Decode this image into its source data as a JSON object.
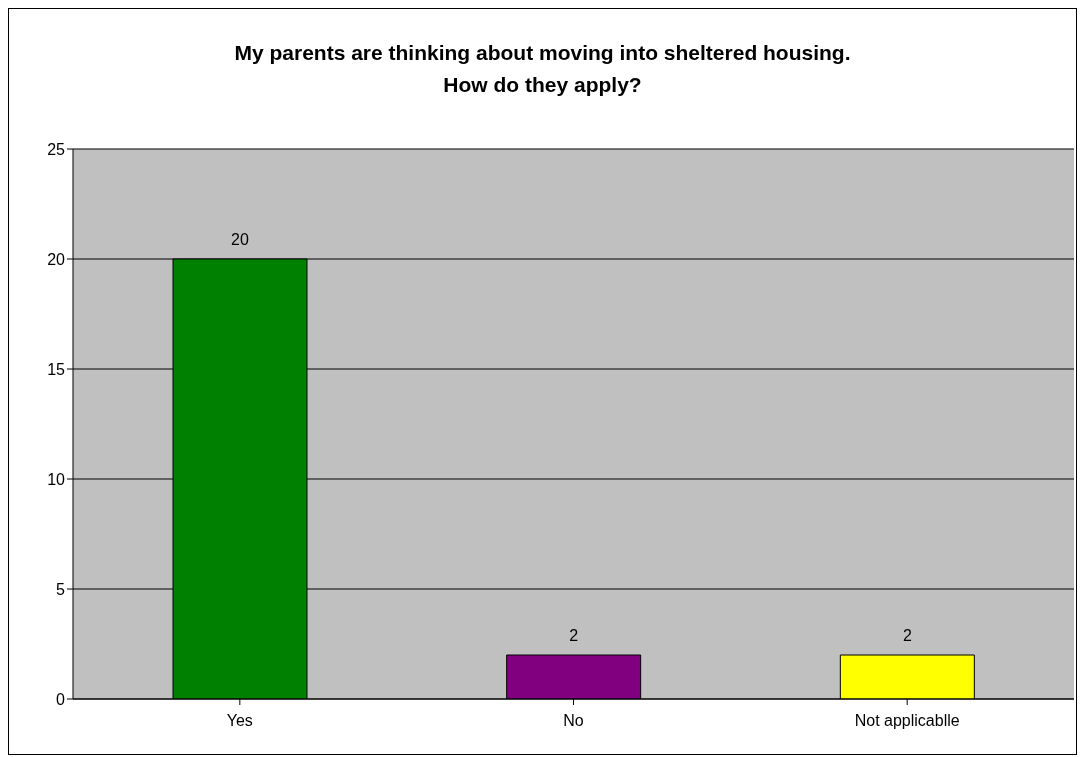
{
  "chart_data": {
    "type": "bar",
    "title": "My parents are thinking about moving into sheltered housing.\nHow do they apply?",
    "categories": [
      "Yes",
      "No",
      "Not applicablle"
    ],
    "values": [
      20,
      2,
      2
    ],
    "colors": [
      "#008000",
      "#800080",
      "#ffff00"
    ],
    "ylim": [
      0,
      25
    ],
    "yticks": [
      0,
      5,
      10,
      15,
      20,
      25
    ],
    "grid": "y",
    "data_labels": true
  }
}
